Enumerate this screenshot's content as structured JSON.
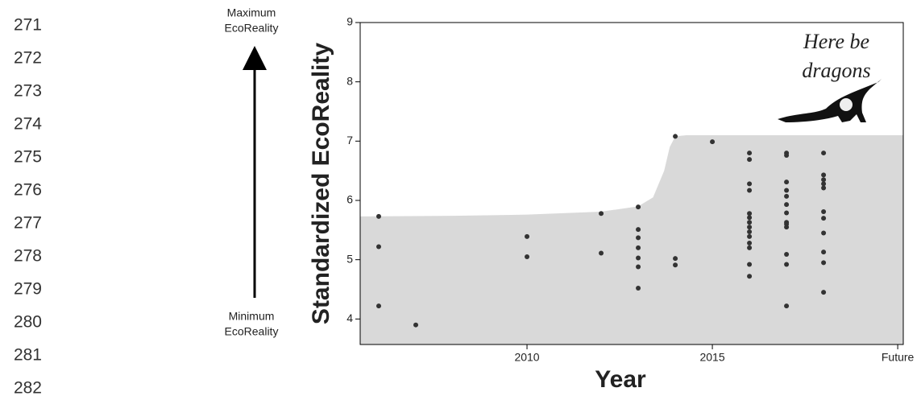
{
  "line_numbers": [
    "271",
    "272",
    "273",
    "274",
    "275",
    "276",
    "277",
    "278",
    "279",
    "280",
    "281",
    "282"
  ],
  "chart_data": {
    "type": "scatter",
    "y_label": "Standardized EcoReality",
    "x_label": "Year",
    "annotations": {
      "top": [
        "Maximum",
        "EcoReality"
      ],
      "bottom": [
        "Minimum",
        "EcoReality"
      ],
      "dragons": [
        "Here be",
        "dragons"
      ]
    },
    "xlim": [
      2005.5,
      2020.15
    ],
    "ylim": [
      3.57,
      9
    ],
    "xticks": [
      2010,
      2015,
      {
        "value": 2020,
        "label": "Future"
      }
    ],
    "yticks": [
      4,
      5,
      6,
      7,
      8,
      9
    ],
    "point_color": "#333333",
    "area": {
      "color": "#d9d9d9",
      "x": [
        2005.5,
        2008,
        2010,
        2012,
        2013,
        2013.4,
        2013.7,
        2013.85,
        2014,
        2014.3,
        2020.15
      ],
      "values": [
        5.73,
        5.74,
        5.76,
        5.81,
        5.9,
        6.05,
        6.5,
        6.9,
        7.08,
        7.1,
        7.1
      ]
    },
    "x": [
      2006,
      2006,
      2006,
      2007,
      2010,
      2010,
      2012,
      2012,
      2013,
      2013,
      2013,
      2013,
      2013,
      2013,
      2013,
      2014,
      2014,
      2014,
      2015,
      2016,
      2016,
      2016,
      2016,
      2016,
      2016,
      2016,
      2016,
      2016,
      2016,
      2016,
      2016,
      2016,
      2016,
      2017,
      2017,
      2017,
      2017,
      2017,
      2017,
      2017,
      2017,
      2017,
      2017,
      2017,
      2017,
      2017,
      2018,
      2018,
      2018,
      2018,
      2018,
      2018,
      2018,
      2018,
      2018,
      2018,
      2018
    ],
    "values": [
      5.73,
      5.22,
      4.22,
      3.9,
      5.39,
      5.05,
      5.78,
      5.11,
      5.89,
      5.51,
      5.37,
      5.2,
      5.03,
      4.88,
      4.52,
      7.08,
      5.02,
      4.91,
      6.99,
      6.8,
      6.69,
      6.28,
      6.17,
      5.78,
      5.71,
      5.63,
      5.55,
      5.47,
      5.39,
      5.28,
      5.2,
      4.92,
      4.72,
      6.8,
      6.76,
      6.31,
      6.17,
      6.07,
      5.93,
      5.79,
      5.63,
      5.6,
      5.55,
      5.09,
      4.92,
      4.22,
      6.8,
      6.43,
      6.35,
      6.28,
      6.21,
      5.81,
      5.7,
      5.45,
      5.13,
      4.95,
      4.45
    ]
  }
}
